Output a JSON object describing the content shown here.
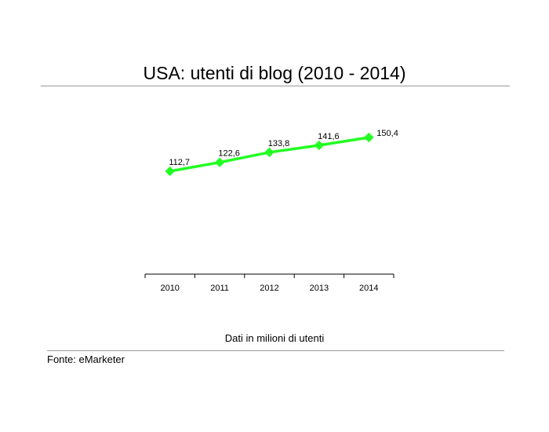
{
  "chart_data": {
    "type": "line",
    "title": "USA: utenti di blog (2010 - 2014)",
    "categories": [
      "2010",
      "2011",
      "2012",
      "2013",
      "2014"
    ],
    "series": [
      {
        "values": [
          112.7,
          122.6,
          133.8,
          141.6,
          150.4
        ],
        "labels": [
          "112,7",
          "122,6",
          "133,8",
          "141,6",
          "150,4"
        ],
        "color": "#22ff22"
      }
    ],
    "xlabel": "",
    "ylabel": "",
    "grid": false,
    "legend": "none",
    "note": "Dati in milioni di utenti"
  },
  "source": "Fonte: eMarketer"
}
